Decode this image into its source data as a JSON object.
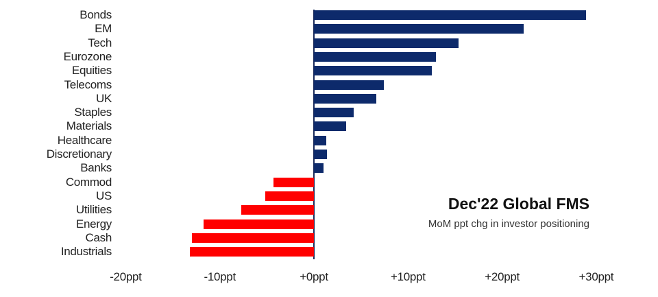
{
  "chart_data": {
    "type": "bar",
    "orientation": "horizontal",
    "title": "Dec'22 Global FMS",
    "subtitle": "MoM ppt chg in investor positioning",
    "xlabel": "",
    "ylabel": "",
    "xlim": [
      -20,
      30
    ],
    "grid": false,
    "legend": null,
    "categories": [
      "Bonds",
      "EM",
      "Tech",
      "Eurozone",
      "Equities",
      "Telecoms",
      "UK",
      "Staples",
      "Materials",
      "Healthcare",
      "Discretionary",
      "Banks",
      "Commod",
      "US",
      "Utilities",
      "Energy",
      "Cash",
      "Industrials"
    ],
    "values": [
      28.9,
      22.3,
      15.4,
      13.0,
      12.5,
      7.4,
      6.6,
      4.2,
      3.4,
      1.3,
      1.4,
      1.0,
      -4.3,
      -5.2,
      -7.7,
      -11.7,
      -13.0,
      -13.2
    ],
    "x_ticks": [
      "-20ppt",
      "-10ppt",
      "+0ppt",
      "+10ppt",
      "+20ppt",
      "+30ppt"
    ],
    "x_tick_values": [
      -20,
      -10,
      0,
      10,
      20,
      30
    ],
    "colors": {
      "positive": "#0d2a6b",
      "negative": "#ff0000"
    }
  }
}
